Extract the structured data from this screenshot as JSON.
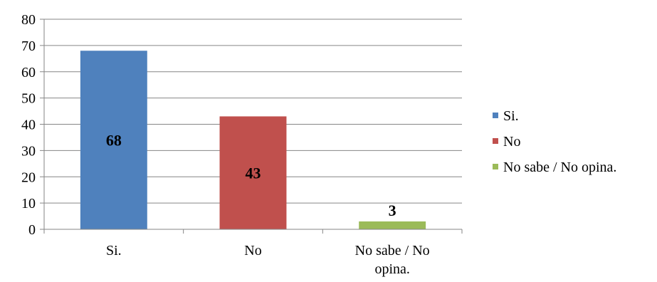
{
  "chart_data": {
    "type": "bar",
    "categories": [
      "Si.",
      "No",
      "No sabe / No opina."
    ],
    "category_label_lines": [
      [
        "Si."
      ],
      [
        "No"
      ],
      [
        "No sabe / No",
        "opina."
      ]
    ],
    "values": [
      68,
      43,
      3
    ],
    "data_labels": [
      "68",
      "43",
      "3"
    ],
    "colors": [
      "#4F81BD",
      "#C0504D",
      "#9BBB59"
    ],
    "ylim": [
      0,
      80
    ],
    "yticks": [
      0,
      10,
      20,
      30,
      40,
      50,
      60,
      70,
      80
    ],
    "grid": true,
    "legend": {
      "position": "right",
      "entries": [
        "Si.",
        "No",
        "No sabe / No opina."
      ]
    },
    "title": "",
    "xlabel": "",
    "ylabel": ""
  }
}
